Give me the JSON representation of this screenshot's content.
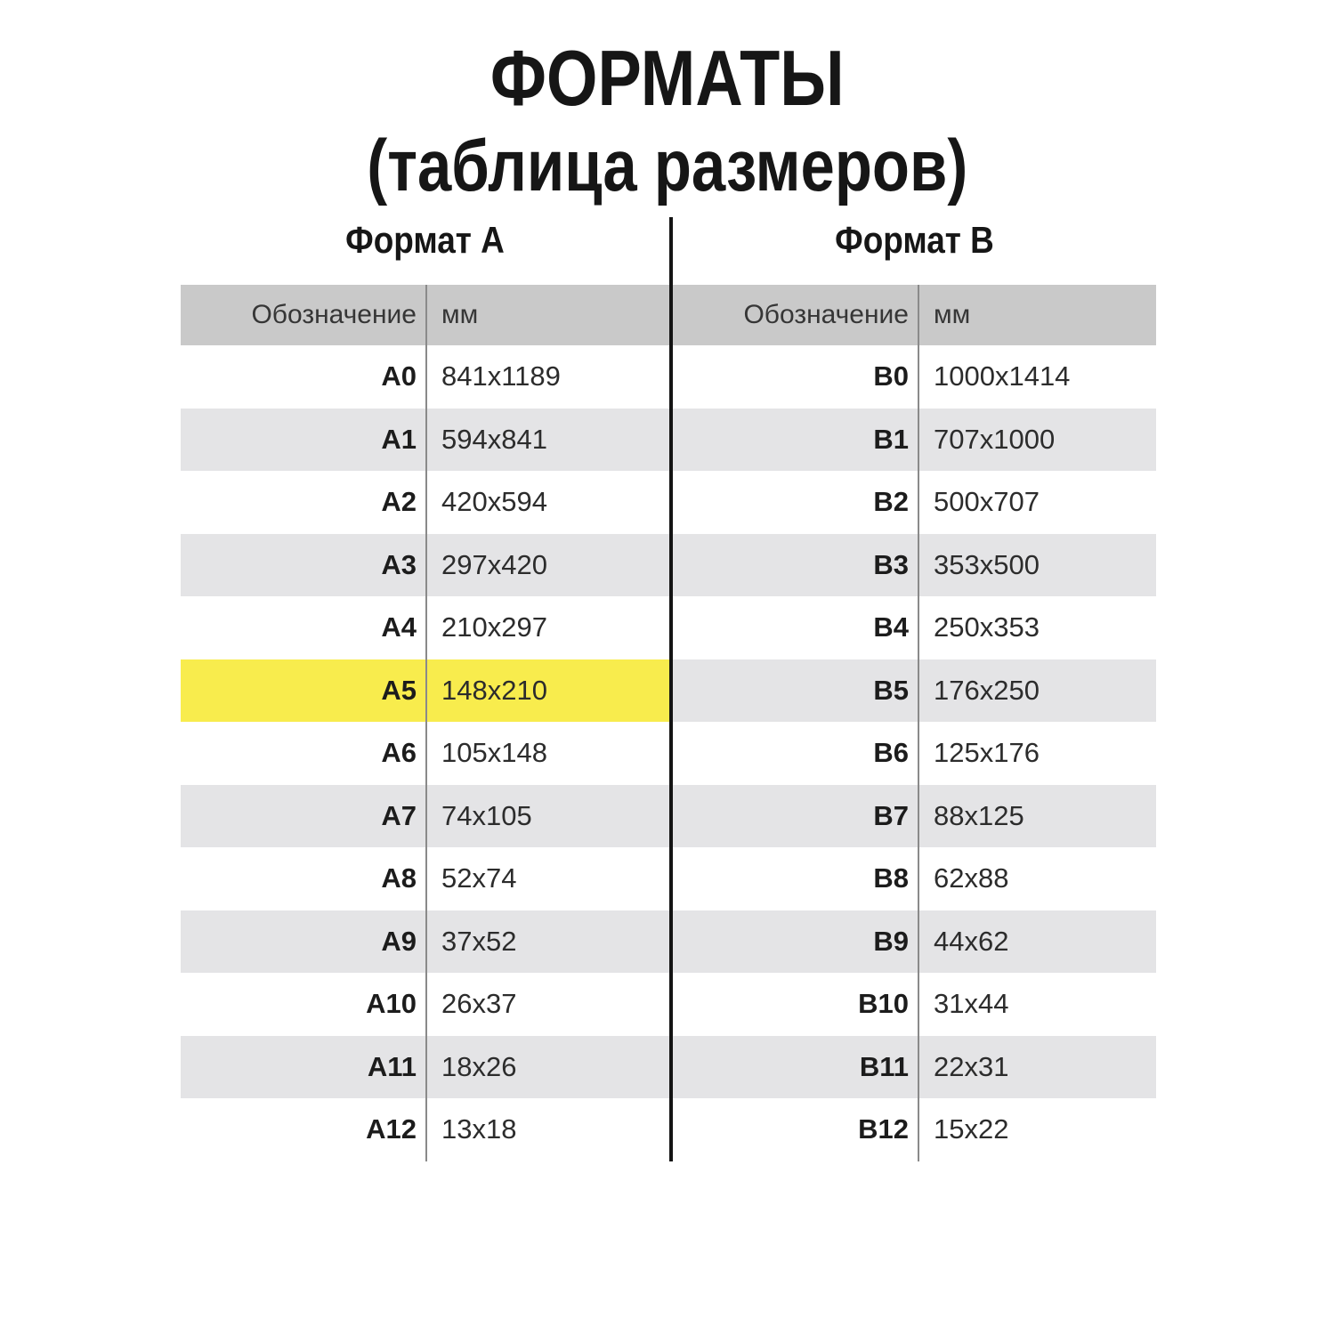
{
  "title": {
    "line1": "ФОРМАТЫ",
    "line2": "(таблица размеров)"
  },
  "tables": [
    {
      "header_label": "Формат А",
      "columns": {
        "designation": "Обозначение",
        "mm": "мм"
      },
      "rows": [
        {
          "designation": "A0",
          "mm": "841x1189",
          "highlight": false
        },
        {
          "designation": "A1",
          "mm": "594x841",
          "highlight": false
        },
        {
          "designation": "A2",
          "mm": "420x594",
          "highlight": false
        },
        {
          "designation": "A3",
          "mm": "297x420",
          "highlight": false
        },
        {
          "designation": "A4",
          "mm": "210x297",
          "highlight": false
        },
        {
          "designation": "A5",
          "mm": "148x210",
          "highlight": true
        },
        {
          "designation": "A6",
          "mm": "105x148",
          "highlight": false
        },
        {
          "designation": "A7",
          "mm": "74x105",
          "highlight": false
        },
        {
          "designation": "A8",
          "mm": "52x74",
          "highlight": false
        },
        {
          "designation": "A9",
          "mm": "37x52",
          "highlight": false
        },
        {
          "designation": "A10",
          "mm": "26x37",
          "highlight": false
        },
        {
          "designation": "A11",
          "mm": "18x26",
          "highlight": false
        },
        {
          "designation": "A12",
          "mm": "13x18",
          "highlight": false
        }
      ]
    },
    {
      "header_label": "Формат B",
      "columns": {
        "designation": "Обозначение",
        "mm": "мм"
      },
      "rows": [
        {
          "designation": "B0",
          "mm": "1000x1414",
          "highlight": false
        },
        {
          "designation": "B1",
          "mm": "707x1000",
          "highlight": false
        },
        {
          "designation": "B2",
          "mm": "500x707",
          "highlight": false
        },
        {
          "designation": "B3",
          "mm": "353x500",
          "highlight": false
        },
        {
          "designation": "B4",
          "mm": "250x353",
          "highlight": false
        },
        {
          "designation": "B5",
          "mm": "176x250",
          "highlight": false
        },
        {
          "designation": "B6",
          "mm": "125x176",
          "highlight": false
        },
        {
          "designation": "B7",
          "mm": "88x125",
          "highlight": false
        },
        {
          "designation": "B8",
          "mm": "62x88",
          "highlight": false
        },
        {
          "designation": "B9",
          "mm": "44x62",
          "highlight": false
        },
        {
          "designation": "B10",
          "mm": "31x44",
          "highlight": false
        },
        {
          "designation": "B11",
          "mm": "22x31",
          "highlight": false
        },
        {
          "designation": "B12",
          "mm": "15x22",
          "highlight": false
        }
      ]
    }
  ],
  "colors": {
    "header_bg": "#c9c9c9",
    "row_alt_bg": "#e4e4e6",
    "highlight_bg": "#f8ec4d",
    "divider": "#141414",
    "separator": "#8a8a8a",
    "title_text": "#161616",
    "body_text": "#2c2c2c"
  }
}
